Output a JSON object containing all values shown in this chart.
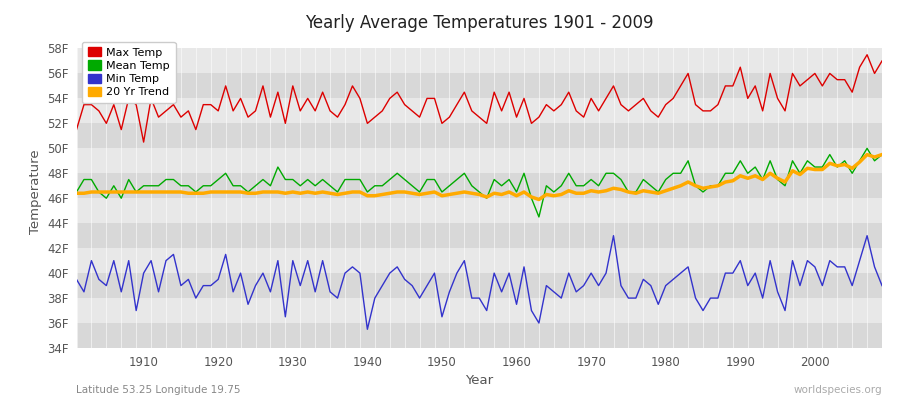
{
  "title": "Yearly Average Temperatures 1901 - 2009",
  "xlabel": "Year",
  "ylabel": "Temperature",
  "subtitle_left": "Latitude 53.25 Longitude 19.75",
  "subtitle_right": "worldspecies.org",
  "years": [
    1901,
    1902,
    1903,
    1904,
    1905,
    1906,
    1907,
    1908,
    1909,
    1910,
    1911,
    1912,
    1913,
    1914,
    1915,
    1916,
    1917,
    1918,
    1919,
    1920,
    1921,
    1922,
    1923,
    1924,
    1925,
    1926,
    1927,
    1928,
    1929,
    1930,
    1931,
    1932,
    1933,
    1934,
    1935,
    1936,
    1937,
    1938,
    1939,
    1940,
    1941,
    1942,
    1943,
    1944,
    1945,
    1946,
    1947,
    1948,
    1949,
    1950,
    1951,
    1952,
    1953,
    1954,
    1955,
    1956,
    1957,
    1958,
    1959,
    1960,
    1961,
    1962,
    1963,
    1964,
    1965,
    1966,
    1967,
    1968,
    1969,
    1970,
    1971,
    1972,
    1973,
    1974,
    1975,
    1976,
    1977,
    1978,
    1979,
    1980,
    1981,
    1982,
    1983,
    1984,
    1985,
    1986,
    1987,
    1988,
    1989,
    1990,
    1991,
    1992,
    1993,
    1994,
    1995,
    1996,
    1997,
    1998,
    1999,
    2000,
    2001,
    2002,
    2003,
    2004,
    2005,
    2006,
    2007,
    2008,
    2009
  ],
  "max_temp_f": [
    51.5,
    53.5,
    53.5,
    53.0,
    52.0,
    53.5,
    51.5,
    54.0,
    53.5,
    50.5,
    54.0,
    52.5,
    53.0,
    53.5,
    52.5,
    53.0,
    51.5,
    53.5,
    53.5,
    53.0,
    55.0,
    53.0,
    54.0,
    52.5,
    53.0,
    55.0,
    52.5,
    54.5,
    52.0,
    55.0,
    53.0,
    54.0,
    53.0,
    54.5,
    53.0,
    52.5,
    53.5,
    55.0,
    54.0,
    52.0,
    52.5,
    53.0,
    54.0,
    54.5,
    53.5,
    53.0,
    52.5,
    54.0,
    54.0,
    52.0,
    52.5,
    53.5,
    54.5,
    53.0,
    52.5,
    52.0,
    54.5,
    53.0,
    54.5,
    52.5,
    54.0,
    52.0,
    52.5,
    53.5,
    53.0,
    53.5,
    54.5,
    53.0,
    52.5,
    54.0,
    53.0,
    54.0,
    55.0,
    53.5,
    53.0,
    53.5,
    54.0,
    53.0,
    52.5,
    53.5,
    54.0,
    55.0,
    56.0,
    53.5,
    53.0,
    53.0,
    53.5,
    55.0,
    55.0,
    56.5,
    54.0,
    55.0,
    53.0,
    56.0,
    54.0,
    53.0,
    56.0,
    55.0,
    55.5,
    56.0,
    55.0,
    56.0,
    55.5,
    55.5,
    54.5,
    56.5,
    57.5,
    56.0,
    57.0
  ],
  "mean_temp_f": [
    46.5,
    47.5,
    47.5,
    46.5,
    46.0,
    47.0,
    46.0,
    47.5,
    46.5,
    47.0,
    47.0,
    47.0,
    47.5,
    47.5,
    47.0,
    47.0,
    46.5,
    47.0,
    47.0,
    47.5,
    48.0,
    47.0,
    47.0,
    46.5,
    47.0,
    47.5,
    47.0,
    48.5,
    47.5,
    47.5,
    47.0,
    47.5,
    47.0,
    47.5,
    47.0,
    46.5,
    47.5,
    47.5,
    47.5,
    46.5,
    47.0,
    47.0,
    47.5,
    48.0,
    47.5,
    47.0,
    46.5,
    47.5,
    47.5,
    46.5,
    47.0,
    47.5,
    48.0,
    47.0,
    46.5,
    46.0,
    47.5,
    47.0,
    47.5,
    46.5,
    48.0,
    46.0,
    44.5,
    47.0,
    46.5,
    47.0,
    48.0,
    47.0,
    47.0,
    47.5,
    47.0,
    48.0,
    48.0,
    47.5,
    46.5,
    46.5,
    47.5,
    47.0,
    46.5,
    47.5,
    48.0,
    48.0,
    49.0,
    47.0,
    46.5,
    47.0,
    47.0,
    48.0,
    48.0,
    49.0,
    48.0,
    48.5,
    47.5,
    49.0,
    47.5,
    47.0,
    49.0,
    48.0,
    49.0,
    48.5,
    48.5,
    49.5,
    48.5,
    49.0,
    48.0,
    49.0,
    50.0,
    49.0,
    49.5
  ],
  "min_temp_f": [
    39.5,
    38.5,
    41.0,
    39.5,
    39.0,
    41.0,
    38.5,
    41.0,
    37.0,
    40.0,
    41.0,
    38.5,
    41.0,
    41.5,
    39.0,
    39.5,
    38.0,
    39.0,
    39.0,
    39.5,
    41.5,
    38.5,
    40.0,
    37.5,
    39.0,
    40.0,
    38.5,
    41.0,
    36.5,
    41.0,
    39.0,
    41.0,
    38.5,
    41.0,
    38.5,
    38.0,
    40.0,
    40.5,
    40.0,
    35.5,
    38.0,
    39.0,
    40.0,
    40.5,
    39.5,
    39.0,
    38.0,
    39.0,
    40.0,
    36.5,
    38.5,
    40.0,
    41.0,
    38.0,
    38.0,
    37.0,
    40.0,
    38.5,
    40.0,
    37.5,
    40.5,
    37.0,
    36.0,
    39.0,
    38.5,
    38.0,
    40.0,
    38.5,
    39.0,
    40.0,
    39.0,
    40.0,
    43.0,
    39.0,
    38.0,
    38.0,
    39.5,
    39.0,
    37.5,
    39.0,
    39.5,
    40.0,
    40.5,
    38.0,
    37.0,
    38.0,
    38.0,
    40.0,
    40.0,
    41.0,
    39.0,
    40.0,
    38.0,
    41.0,
    38.5,
    37.0,
    41.0,
    39.0,
    41.0,
    40.5,
    39.0,
    41.0,
    40.5,
    40.5,
    39.0,
    41.0,
    43.0,
    40.5,
    39.0
  ],
  "trend_20yr_f": [
    46.4,
    46.4,
    46.5,
    46.5,
    46.5,
    46.5,
    46.5,
    46.5,
    46.5,
    46.5,
    46.5,
    46.5,
    46.5,
    46.5,
    46.5,
    46.4,
    46.4,
    46.4,
    46.5,
    46.5,
    46.5,
    46.5,
    46.5,
    46.4,
    46.4,
    46.5,
    46.5,
    46.5,
    46.4,
    46.5,
    46.4,
    46.5,
    46.4,
    46.5,
    46.4,
    46.3,
    46.4,
    46.5,
    46.5,
    46.2,
    46.2,
    46.3,
    46.4,
    46.5,
    46.5,
    46.4,
    46.3,
    46.4,
    46.5,
    46.2,
    46.3,
    46.4,
    46.5,
    46.4,
    46.3,
    46.1,
    46.4,
    46.3,
    46.5,
    46.2,
    46.5,
    46.1,
    45.9,
    46.3,
    46.2,
    46.3,
    46.6,
    46.4,
    46.4,
    46.6,
    46.5,
    46.6,
    46.8,
    46.7,
    46.5,
    46.4,
    46.6,
    46.5,
    46.4,
    46.6,
    46.8,
    47.0,
    47.3,
    47.0,
    46.8,
    46.9,
    47.0,
    47.3,
    47.4,
    47.8,
    47.6,
    47.8,
    47.5,
    48.0,
    47.6,
    47.3,
    48.2,
    47.9,
    48.4,
    48.3,
    48.3,
    48.8,
    48.6,
    48.7,
    48.4,
    48.9,
    49.5,
    49.3,
    49.5
  ],
  "max_color": "#dd0000",
  "mean_color": "#00aa00",
  "min_color": "#3333cc",
  "trend_color": "#ffaa00",
  "band_colors": [
    "#d8d8d8",
    "#e8e8e8"
  ],
  "ylim_min": 34,
  "ylim_max": 59,
  "yticks": [
    34,
    36,
    38,
    40,
    42,
    44,
    46,
    48,
    50,
    52,
    54,
    56,
    58
  ],
  "ytick_labels": [
    "34F",
    "36F",
    "38F",
    "40F",
    "42F",
    "44F",
    "46F",
    "48F",
    "50F",
    "52F",
    "54F",
    "56F",
    "58F"
  ],
  "xticks": [
    1910,
    1920,
    1930,
    1940,
    1950,
    1960,
    1970,
    1980,
    1990,
    2000
  ],
  "legend_entries": [
    "Max Temp",
    "Mean Temp",
    "Min Temp",
    "20 Yr Trend"
  ],
  "legend_colors": [
    "#dd0000",
    "#00aa00",
    "#3333cc",
    "#ffaa00"
  ]
}
